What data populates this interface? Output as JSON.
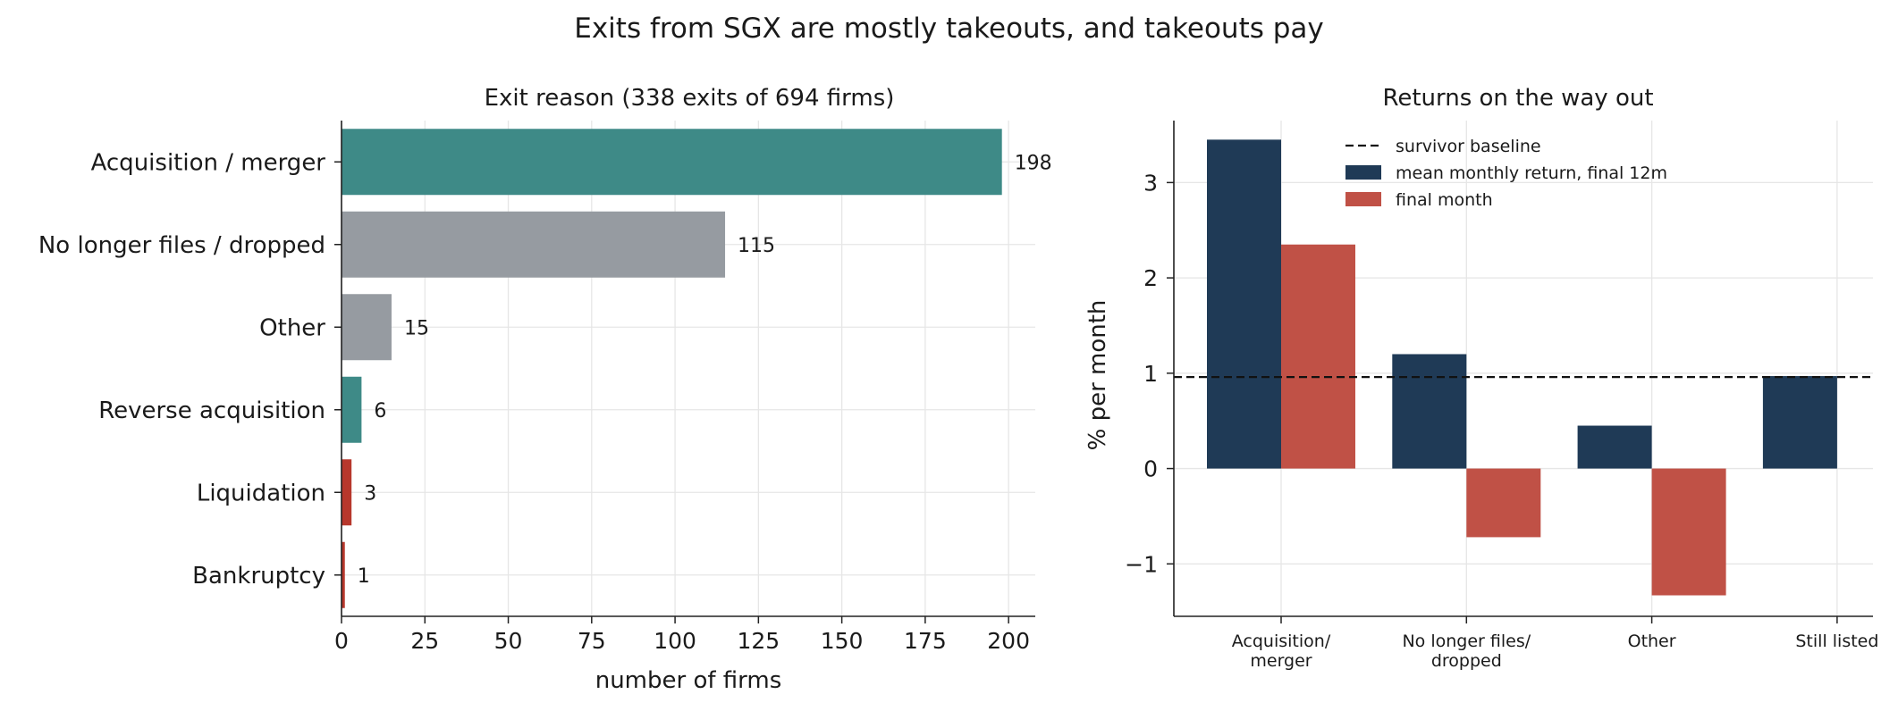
{
  "figure": {
    "suptitle": "Exits from SGX are mostly takeouts, and takeouts pay"
  },
  "chart_data": [
    {
      "type": "bar",
      "orientation": "horizontal",
      "title": "Exit reason (338 exits of 694 firms)",
      "xlabel": "number of firms",
      "ylabel": "",
      "categories": [
        "Acquisition / merger",
        "No longer files / dropped",
        "Other",
        "Reverse acquisition",
        "Liquidation",
        "Bankruptcy"
      ],
      "values": [
        198,
        115,
        15,
        6,
        3,
        1
      ],
      "data_labels": [
        "198",
        "115",
        "15",
        "6",
        "3",
        "1"
      ],
      "bar_colors": [
        "#3e8a87",
        "#969ba1",
        "#969ba1",
        "#3e8a87",
        "#b7372c",
        "#b7372c"
      ],
      "xlim": [
        0,
        208
      ],
      "xticks": [
        0,
        25,
        50,
        75,
        100,
        125,
        150,
        175,
        200
      ],
      "xtick_labels": [
        "0",
        "25",
        "50",
        "75",
        "100",
        "125",
        "150",
        "175",
        "200"
      ],
      "grid": true
    },
    {
      "type": "bar",
      "title": "Returns on the way out",
      "xlabel": "",
      "ylabel": "% per month",
      "categories": [
        "Acquisition/\nmerger",
        "No longer files/\ndropped",
        "Other",
        "Still listed"
      ],
      "series": [
        {
          "name": "mean monthly return, final 12m",
          "color": "#1f3a56",
          "values": [
            3.45,
            1.2,
            0.45,
            0.97
          ]
        },
        {
          "name": "final month",
          "color": "#c05146",
          "values": [
            2.35,
            -0.72,
            -1.33,
            null
          ]
        }
      ],
      "baseline": {
        "name": "survivor baseline",
        "value": 0.96,
        "style": "dashed",
        "color": "#111111"
      },
      "ylim": [
        -1.55,
        3.65
      ],
      "yticks": [
        -1,
        0,
        1,
        2,
        3
      ],
      "ytick_labels": [
        "−1",
        "0",
        "1",
        "2",
        "3"
      ],
      "legend_position": "top-center",
      "grid": true
    }
  ]
}
